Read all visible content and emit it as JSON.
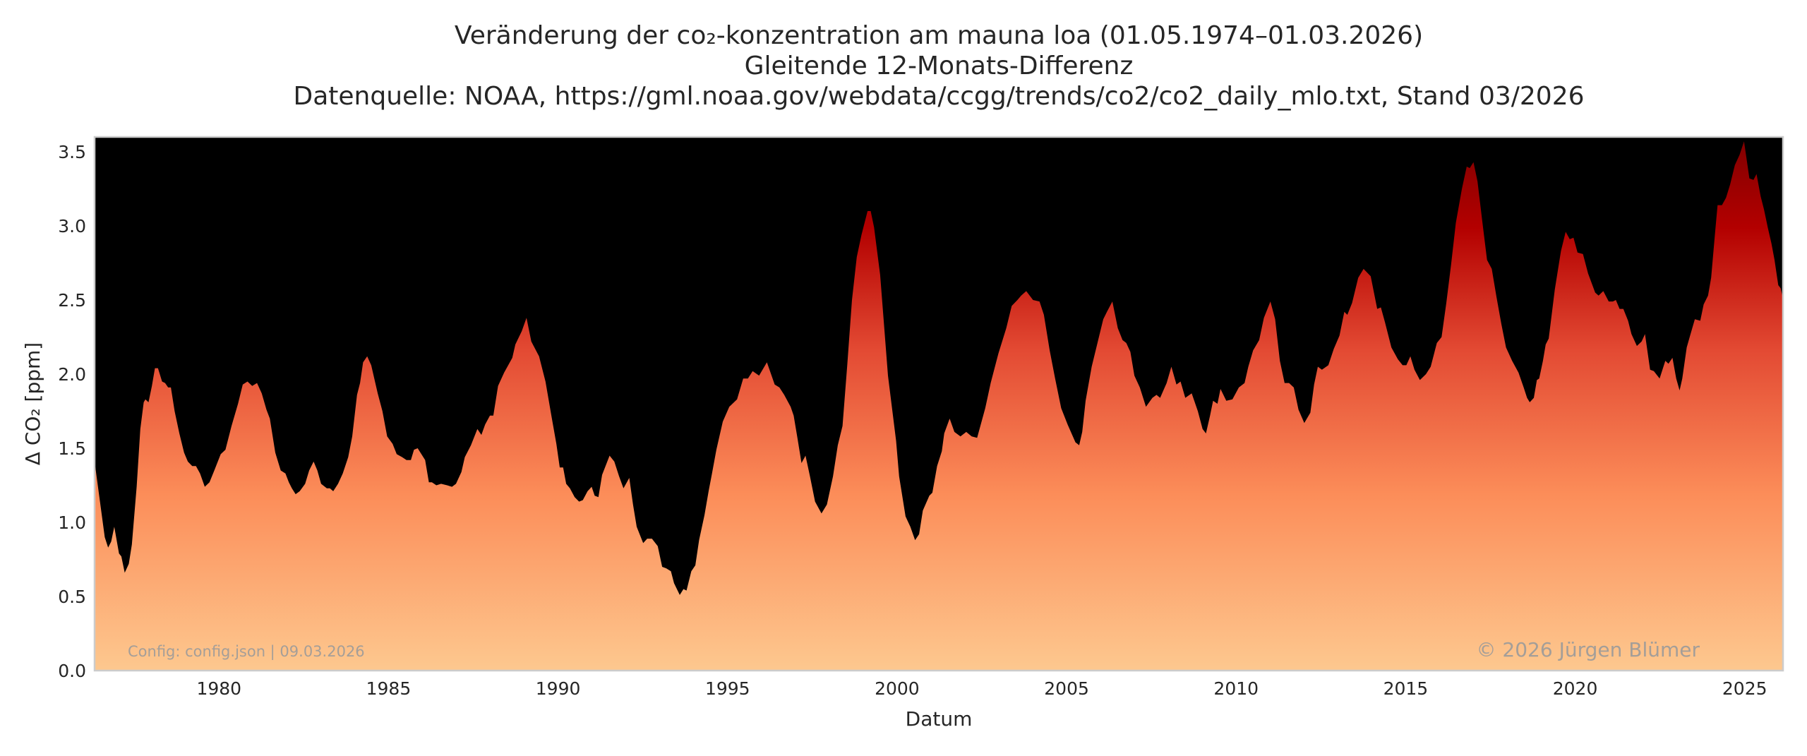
{
  "chart_data": {
    "type": "area",
    "title": "Veränderung der co₂-konzentration am mauna loa (01.05.1974–01.03.2026)",
    "subtitle": "Gleitende 12-Monats-Differenz",
    "source": "Datenquelle: NOAA, https://gml.noaa.gov/webdata/ccgg/trends/co2/co2_daily_mlo.txt, Stand 03/2026",
    "xlabel": "Datum",
    "ylabel": "Δ CO₂ [ppm]",
    "xlim": [
      1976.33,
      2026.13
    ],
    "ylim": [
      0,
      3.6
    ],
    "xticks": [
      "1980",
      "1985",
      "1990",
      "1995",
      "2000",
      "2005",
      "2010",
      "2015",
      "2020",
      "2025"
    ],
    "yticks": [
      "0.0",
      "0.5",
      "1.0",
      "1.5",
      "2.0",
      "2.5",
      "3.0",
      "3.5"
    ],
    "grid": false,
    "colormap": [
      "#fdc88f",
      "#fc8d59",
      "#e34a33",
      "#b30000",
      "#7f0000"
    ],
    "background_above_curve": "#000000",
    "annotations": {
      "config": "Config: config.json | 09.03.2026",
      "copyright": "© 2026 Jürgen Blümer"
    },
    "x": [
      1976.33,
      1976.63,
      1976.73,
      1976.82,
      1976.91,
      1977.05,
      1977.12,
      1977.22,
      1977.34,
      1977.43,
      1977.57,
      1977.68,
      1977.78,
      1977.83,
      1977.92,
      1978.02,
      1978.11,
      1978.2,
      1978.32,
      1978.41,
      1978.5,
      1978.58,
      1978.69,
      1978.83,
      1978.97,
      1979.08,
      1979.21,
      1979.32,
      1979.44,
      1979.58,
      1979.72,
      1979.86,
      1980.05,
      1980.19,
      1980.37,
      1980.56,
      1980.7,
      1980.84,
      1980.98,
      1981.12,
      1981.26,
      1981.4,
      1981.5,
      1981.66,
      1981.82,
      1981.96,
      1982.06,
      1982.15,
      1982.26,
      1982.38,
      1982.54,
      1982.66,
      1982.79,
      1982.9,
      1983.01,
      1983.18,
      1983.27,
      1983.37,
      1983.51,
      1983.65,
      1983.81,
      1983.93,
      1984.07,
      1984.16,
      1984.25,
      1984.37,
      1984.49,
      1984.68,
      1984.82,
      1984.96,
      1985.12,
      1985.24,
      1985.4,
      1985.53,
      1985.66,
      1985.75,
      1985.86,
      1985.97,
      1986.08,
      1986.19,
      1986.28,
      1986.41,
      1986.55,
      1986.73,
      1986.87,
      1986.99,
      1987.15,
      1987.25,
      1987.43,
      1987.62,
      1987.74,
      1987.85,
      1987.99,
      1988.09,
      1988.23,
      1988.41,
      1988.65,
      1988.74,
      1988.93,
      1989.07,
      1989.21,
      1989.44,
      1989.63,
      1989.81,
      1989.95,
      1990.05,
      1990.15,
      1990.24,
      1990.35,
      1990.49,
      1990.62,
      1990.73,
      1990.87,
      1990.99,
      1991.08,
      1991.19,
      1991.3,
      1991.52,
      1991.66,
      1991.8,
      1991.93,
      1992.1,
      1992.21,
      1992.32,
      1992.51,
      1992.63,
      1992.77,
      1992.94,
      1993.07,
      1993.19,
      1993.33,
      1993.42,
      1993.59,
      1993.7,
      1993.79,
      1993.93,
      1994.05,
      1994.16,
      1994.32,
      1994.44,
      1994.54,
      1994.67,
      1994.86,
      1995.05,
      1995.28,
      1995.46,
      1995.6,
      1995.74,
      1995.93,
      1996.16,
      1996.39,
      1996.53,
      1996.67,
      1996.86,
      1996.95,
      1997.06,
      1997.18,
      1997.3,
      1997.43,
      1997.58,
      1997.77,
      1997.93,
      1998.11,
      1998.25,
      1998.39,
      1998.53,
      1998.67,
      1998.81,
      1998.95,
      1999.13,
      1999.22,
      1999.32,
      1999.5,
      1999.73,
      1999.97,
      2000.06,
      2000.25,
      2000.39,
      2000.53,
      2000.65,
      2000.76,
      2000.95,
      2001.04,
      2001.18,
      2001.32,
      2001.39,
      2001.55,
      2001.69,
      2001.87,
      2002.04,
      2002.2,
      2002.36,
      2002.6,
      2002.76,
      2002.99,
      2003.22,
      2003.38,
      2003.55,
      2003.66,
      2003.81,
      2004.01,
      2004.2,
      2004.33,
      2004.5,
      2004.66,
      2004.84,
      2005.03,
      2005.26,
      2005.37,
      2005.46,
      2005.56,
      2005.74,
      2005.91,
      2006.08,
      2006.19,
      2006.35,
      2006.51,
      2006.65,
      2006.76,
      2006.88,
      2007.0,
      2007.16,
      2007.34,
      2007.53,
      2007.65,
      2007.76,
      2007.95,
      2008.09,
      2008.24,
      2008.36,
      2008.5,
      2008.69,
      2008.87,
      2009.01,
      2009.11,
      2009.23,
      2009.32,
      2009.45,
      2009.54,
      2009.71,
      2009.89,
      2010.08,
      2010.25,
      2010.36,
      2010.5,
      2010.68,
      2010.82,
      2011.01,
      2011.15,
      2011.29,
      2011.43,
      2011.56,
      2011.7,
      2011.84,
      2012.01,
      2012.19,
      2012.3,
      2012.41,
      2012.53,
      2012.72,
      2012.88,
      2013.05,
      2013.19,
      2013.28,
      2013.42,
      2013.6,
      2013.76,
      2013.97,
      2014.16,
      2014.27,
      2014.39,
      2014.58,
      2014.77,
      2014.91,
      2015.02,
      2015.14,
      2015.26,
      2015.42,
      2015.6,
      2015.74,
      2015.92,
      2016.06,
      2016.2,
      2016.34,
      2016.48,
      2016.66,
      2016.8,
      2016.89,
      2017.0,
      2017.12,
      2017.26,
      2017.4,
      2017.54,
      2017.68,
      2017.82,
      2017.96,
      2018.14,
      2018.33,
      2018.48,
      2018.58,
      2018.66,
      2018.78,
      2018.87,
      2018.94,
      2019.05,
      2019.13,
      2019.22,
      2019.4,
      2019.58,
      2019.72,
      2019.84,
      2019.95,
      2020.07,
      2020.23,
      2020.38,
      2020.59,
      2020.69,
      2020.83,
      2020.99,
      2021.11,
      2021.2,
      2021.31,
      2021.42,
      2021.56,
      2021.66,
      2021.82,
      2021.96,
      2022.06,
      2022.21,
      2022.32,
      2022.49,
      2022.66,
      2022.75,
      2022.87,
      2022.98,
      2023.08,
      2023.16,
      2023.29,
      2023.39,
      2023.53,
      2023.69,
      2023.79,
      2023.92,
      2024.01,
      2024.12,
      2024.2,
      2024.33,
      2024.45,
      2024.57,
      2024.71,
      2024.85,
      2024.98,
      2025.14,
      2025.26,
      2025.35,
      2025.47,
      2025.57,
      2025.68,
      2025.79,
      2025.88,
      2025.99,
      2026.06,
      2026.13
    ],
    "y": [
      1.41,
      0.9,
      0.83,
      0.87,
      0.97,
      0.79,
      0.77,
      0.66,
      0.72,
      0.85,
      1.24,
      1.63,
      1.81,
      1.83,
      1.81,
      1.92,
      2.04,
      2.04,
      1.95,
      1.94,
      1.91,
      1.91,
      1.75,
      1.6,
      1.47,
      1.41,
      1.38,
      1.38,
      1.33,
      1.24,
      1.27,
      1.35,
      1.46,
      1.49,
      1.65,
      1.8,
      1.93,
      1.95,
      1.92,
      1.94,
      1.87,
      1.76,
      1.7,
      1.47,
      1.35,
      1.33,
      1.27,
      1.23,
      1.19,
      1.21,
      1.26,
      1.35,
      1.41,
      1.35,
      1.26,
      1.23,
      1.23,
      1.21,
      1.26,
      1.33,
      1.44,
      1.58,
      1.86,
      1.94,
      2.08,
      2.12,
      2.06,
      1.87,
      1.75,
      1.58,
      1.53,
      1.46,
      1.44,
      1.42,
      1.42,
      1.49,
      1.5,
      1.46,
      1.42,
      1.27,
      1.27,
      1.25,
      1.26,
      1.25,
      1.24,
      1.26,
      1.34,
      1.44,
      1.52,
      1.63,
      1.59,
      1.66,
      1.72,
      1.72,
      1.92,
      2.01,
      2.11,
      2.2,
      2.29,
      2.38,
      2.22,
      2.12,
      1.95,
      1.71,
      1.53,
      1.37,
      1.37,
      1.26,
      1.23,
      1.17,
      1.14,
      1.15,
      1.21,
      1.24,
      1.18,
      1.17,
      1.32,
      1.45,
      1.41,
      1.31,
      1.23,
      1.3,
      1.12,
      0.97,
      0.86,
      0.89,
      0.89,
      0.84,
      0.7,
      0.69,
      0.67,
      0.59,
      0.51,
      0.55,
      0.54,
      0.67,
      0.71,
      0.88,
      1.05,
      1.21,
      1.33,
      1.49,
      1.68,
      1.78,
      1.83,
      1.97,
      1.97,
      2.02,
      1.99,
      2.08,
      1.93,
      1.91,
      1.86,
      1.78,
      1.72,
      1.57,
      1.4,
      1.45,
      1.31,
      1.14,
      1.06,
      1.12,
      1.31,
      1.52,
      1.65,
      2.06,
      2.5,
      2.79,
      2.94,
      3.1,
      3.1,
      2.99,
      2.67,
      1.99,
      1.55,
      1.31,
      1.04,
      0.97,
      0.88,
      0.92,
      1.08,
      1.18,
      1.2,
      1.38,
      1.48,
      1.6,
      1.7,
      1.61,
      1.58,
      1.61,
      1.58,
      1.57,
      1.77,
      1.94,
      2.14,
      2.31,
      2.46,
      2.5,
      2.53,
      2.56,
      2.5,
      2.49,
      2.4,
      2.16,
      1.97,
      1.77,
      1.66,
      1.54,
      1.52,
      1.61,
      1.82,
      2.05,
      2.21,
      2.37,
      2.42,
      2.49,
      2.31,
      2.23,
      2.21,
      2.15,
      1.99,
      1.91,
      1.78,
      1.84,
      1.86,
      1.84,
      1.94,
      2.05,
      1.93,
      1.95,
      1.84,
      1.87,
      1.75,
      1.63,
      1.6,
      1.72,
      1.82,
      1.8,
      1.9,
      1.82,
      1.83,
      1.91,
      1.94,
      2.05,
      2.16,
      2.23,
      2.38,
      2.49,
      2.37,
      2.09,
      1.94,
      1.94,
      1.91,
      1.76,
      1.67,
      1.74,
      1.93,
      2.05,
      2.03,
      2.06,
      2.17,
      2.26,
      2.42,
      2.4,
      2.48,
      2.65,
      2.71,
      2.66,
      2.44,
      2.45,
      2.35,
      2.18,
      2.1,
      2.06,
      2.06,
      2.12,
      2.03,
      1.96,
      2.0,
      2.05,
      2.21,
      2.25,
      2.48,
      2.74,
      3.02,
      3.25,
      3.4,
      3.39,
      3.43,
      3.3,
      3.03,
      2.77,
      2.71,
      2.52,
      2.34,
      2.18,
      2.09,
      2.01,
      1.91,
      1.84,
      1.81,
      1.84,
      1.96,
      1.97,
      2.09,
      2.2,
      2.24,
      2.57,
      2.83,
      2.96,
      2.91,
      2.92,
      2.82,
      2.81,
      2.68,
      2.55,
      2.53,
      2.56,
      2.49,
      2.49,
      2.5,
      2.44,
      2.44,
      2.36,
      2.27,
      2.19,
      2.22,
      2.27,
      2.03,
      2.02,
      1.97,
      2.09,
      2.07,
      2.11,
      1.97,
      1.89,
      1.97,
      2.18,
      2.26,
      2.37,
      2.36,
      2.47,
      2.53,
      2.65,
      2.94,
      3.14,
      3.14,
      3.19,
      3.28,
      3.41,
      3.48,
      3.57,
      3.32,
      3.31,
      3.35,
      3.2,
      3.11,
      2.99,
      2.88,
      2.77,
      2.6,
      2.58,
      2.51
    ]
  }
}
